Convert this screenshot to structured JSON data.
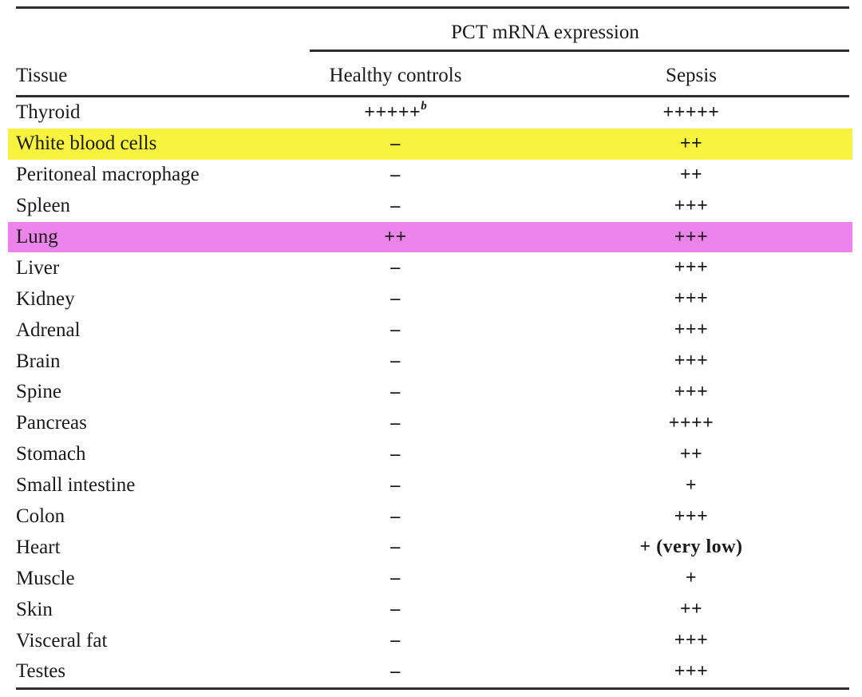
{
  "table": {
    "spanner_label": "PCT mRNA expression",
    "headers": {
      "tissue": "Tissue",
      "healthy": "Healthy controls",
      "sepsis": "Sepsis"
    },
    "rows": [
      {
        "tissue": "Thyroid",
        "healthy": "+++++",
        "healthy_sup": "b",
        "sepsis": "+++++",
        "highlight": "none"
      },
      {
        "tissue": "White blood cells",
        "healthy": "–",
        "healthy_sup": "",
        "sepsis": "++",
        "highlight": "yellow"
      },
      {
        "tissue": "Peritoneal macrophage",
        "healthy": "–",
        "healthy_sup": "",
        "sepsis": "++",
        "highlight": "none"
      },
      {
        "tissue": "Spleen",
        "healthy": "–",
        "healthy_sup": "",
        "sepsis": "+++",
        "highlight": "none"
      },
      {
        "tissue": "Lung",
        "healthy": "++",
        "healthy_sup": "",
        "sepsis": "+++",
        "highlight": "magenta"
      },
      {
        "tissue": "Liver",
        "healthy": "–",
        "healthy_sup": "",
        "sepsis": "+++",
        "highlight": "none"
      },
      {
        "tissue": "Kidney",
        "healthy": "–",
        "healthy_sup": "",
        "sepsis": "+++",
        "highlight": "none"
      },
      {
        "tissue": "Adrenal",
        "healthy": "–",
        "healthy_sup": "",
        "sepsis": "+++",
        "highlight": "none"
      },
      {
        "tissue": "Brain",
        "healthy": "–",
        "healthy_sup": "",
        "sepsis": "+++",
        "highlight": "none"
      },
      {
        "tissue": "Spine",
        "healthy": "–",
        "healthy_sup": "",
        "sepsis": "+++",
        "highlight": "none"
      },
      {
        "tissue": "Pancreas",
        "healthy": "–",
        "healthy_sup": "",
        "sepsis": "++++",
        "highlight": "none"
      },
      {
        "tissue": "Stomach",
        "healthy": "–",
        "healthy_sup": "",
        "sepsis": "++",
        "highlight": "none"
      },
      {
        "tissue": "Small intestine",
        "healthy": "–",
        "healthy_sup": "",
        "sepsis": "+",
        "highlight": "none"
      },
      {
        "tissue": "Colon",
        "healthy": "–",
        "healthy_sup": "",
        "sepsis": "+++",
        "highlight": "none"
      },
      {
        "tissue": "Heart",
        "healthy": "–",
        "healthy_sup": "",
        "sepsis": "+ (very low)",
        "highlight": "none"
      },
      {
        "tissue": "Muscle",
        "healthy": "–",
        "healthy_sup": "",
        "sepsis": "+",
        "highlight": "none"
      },
      {
        "tissue": "Skin",
        "healthy": "–",
        "healthy_sup": "",
        "sepsis": "++",
        "highlight": "none"
      },
      {
        "tissue": "Visceral fat",
        "healthy": "–",
        "healthy_sup": "",
        "sepsis": "+++",
        "highlight": "none"
      },
      {
        "tissue": "Testes",
        "healthy": "–",
        "healthy_sup": "",
        "sepsis": "+++",
        "highlight": "none"
      }
    ],
    "colors": {
      "highlight_yellow": "#f7f33e",
      "highlight_magenta": "#ec84ec",
      "rule": "#2e2e2e",
      "text": "#1a1a1a"
    }
  },
  "chart_data": {
    "type": "table",
    "title": "PCT mRNA expression",
    "columns": [
      "Tissue",
      "Healthy controls",
      "Sepsis"
    ],
    "rows": [
      [
        "Thyroid",
        "+++++ (b)",
        "+++++"
      ],
      [
        "White blood cells",
        "–",
        "++"
      ],
      [
        "Peritoneal macrophage",
        "–",
        "++"
      ],
      [
        "Spleen",
        "–",
        "+++"
      ],
      [
        "Lung",
        "++",
        "+++"
      ],
      [
        "Liver",
        "–",
        "+++"
      ],
      [
        "Kidney",
        "–",
        "+++"
      ],
      [
        "Adrenal",
        "–",
        "+++"
      ],
      [
        "Brain",
        "–",
        "+++"
      ],
      [
        "Spine",
        "–",
        "+++"
      ],
      [
        "Pancreas",
        "–",
        "++++"
      ],
      [
        "Stomach",
        "–",
        "++"
      ],
      [
        "Small intestine",
        "–",
        "+"
      ],
      [
        "Colon",
        "–",
        "+++"
      ],
      [
        "Heart",
        "–",
        "+ (very low)"
      ],
      [
        "Muscle",
        "–",
        "+"
      ],
      [
        "Skin",
        "–",
        "++"
      ],
      [
        "Visceral fat",
        "–",
        "+++"
      ],
      [
        "Testes",
        "–",
        "+++"
      ]
    ],
    "highlighted_rows": [
      {
        "tissue": "White blood cells",
        "color": "yellow"
      },
      {
        "tissue": "Lung",
        "color": "magenta"
      }
    ]
  }
}
